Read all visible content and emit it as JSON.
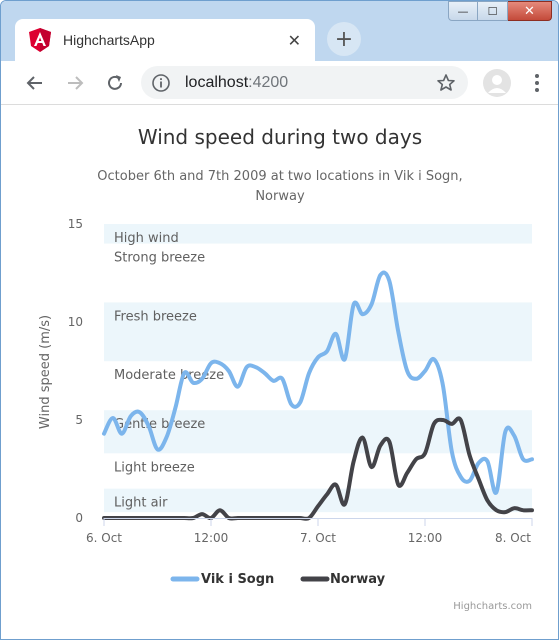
{
  "browser": {
    "tab_title": "HighchartsApp",
    "url_host": "localhost",
    "url_port": ":4200",
    "controls": {
      "minimize": "—",
      "maximize": "☐",
      "close": "✕"
    },
    "new_tab": "+",
    "tab_close": "✕"
  },
  "chart_data": {
    "type": "line",
    "title": "Wind speed during two days",
    "subtitle_lines": [
      "October 6th and 7th 2009 at two locations in Vik i Sogn,",
      "Norway"
    ],
    "ylabel": "Wind speed (m/s)",
    "xlabel": "",
    "ylim": [
      0,
      15
    ],
    "y_ticks": [
      0,
      5,
      10,
      15
    ],
    "x_ticks": [
      {
        "label": "6. Oct",
        "h": 0
      },
      {
        "label": "12:00",
        "h": 12
      },
      {
        "label": "7. Oct",
        "h": 24
      },
      {
        "label": "12:00",
        "h": 36
      },
      {
        "label": "8. Oct",
        "h": 48
      }
    ],
    "point_interval_hours": 1,
    "bands": [
      {
        "from": 0.3,
        "to": 1.5,
        "label": "Light air",
        "fill": true
      },
      {
        "from": 1.5,
        "to": 3.3,
        "label": "Light breeze",
        "fill": false
      },
      {
        "from": 3.3,
        "to": 5.5,
        "label": "Gentle breeze",
        "fill": true
      },
      {
        "from": 5.5,
        "to": 8,
        "label": "Moderate breeze",
        "fill": false
      },
      {
        "from": 8,
        "to": 11,
        "label": "Fresh breeze",
        "fill": true
      },
      {
        "from": 11,
        "to": 14,
        "label": "Strong breeze",
        "fill": false
      },
      {
        "from": 14,
        "to": 15,
        "label": "High wind",
        "fill": true
      }
    ],
    "series": [
      {
        "name": "Vik i Sogn",
        "color": "#7cb5ec",
        "values": [
          4.3,
          5.1,
          4.3,
          5.2,
          5.4,
          4.7,
          3.5,
          4.1,
          5.6,
          7.4,
          6.9,
          7.1,
          7.9,
          7.9,
          7.5,
          6.7,
          7.7,
          7.7,
          7.4,
          7.0,
          7.1,
          5.8,
          5.9,
          7.4,
          8.2,
          8.5,
          9.4,
          8.1,
          10.9,
          10.4,
          10.9,
          12.4,
          12.1,
          9.5,
          7.5,
          7.1,
          7.5,
          8.1,
          6.8,
          3.4,
          2.1,
          1.9,
          2.8,
          2.9,
          1.3,
          4.4,
          4.2,
          3.0,
          3.0
        ]
      },
      {
        "name": "Norway",
        "color": "#434348",
        "values": [
          0.0,
          0.0,
          0.0,
          0.0,
          0.0,
          0.0,
          0.0,
          0.0,
          0.0,
          0.0,
          0.0,
          0.2,
          0.0,
          0.4,
          0.0,
          0.0,
          0.0,
          0.0,
          0.0,
          0.0,
          0.0,
          0.0,
          0.0,
          0.0,
          0.6,
          1.2,
          1.7,
          0.7,
          2.9,
          4.1,
          2.6,
          3.7,
          3.9,
          1.7,
          2.3,
          3.0,
          3.3,
          4.8,
          5.0,
          4.8,
          5.0,
          3.2,
          2.0,
          0.9,
          0.4,
          0.3,
          0.5,
          0.4,
          0.4
        ]
      }
    ],
    "legend_position": "bottom-center",
    "credits": "Highcharts.com"
  }
}
